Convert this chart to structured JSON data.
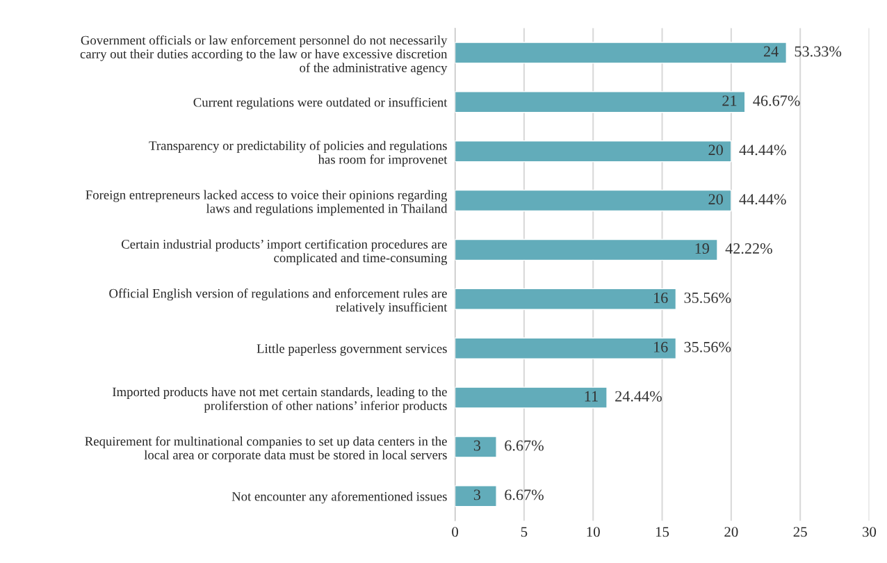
{
  "chart_data": {
    "type": "bar",
    "orientation": "horizontal",
    "categories": [
      "Government officials or law enforcement personnel do not necessarily\ncarry out their duties according to the law or have excessive discretion\nof the administrative agency",
      "Current regulations were outdated or insufficient",
      "Transparency or predictability of policies and regulations\nhas room for improvenet",
      "Foreign entrepreneurs lacked access to voice their opinions regarding\nlaws and regulations implemented in Thailand",
      "Certain industrial products’ import certification procedures are\ncomplicated and time-consuming",
      "Official English version of regulations and enforcement rules are\nrelatively insufficient",
      "Little paperless government services",
      "Imported products have not met certain standards, leading to the\nproliferstion of other nations’ inferior products",
      "Requirement for multinational companies to set up data centers in the\nlocal area or corporate data must be stored in local servers",
      "Not encounter any aforementioned issues"
    ],
    "values": [
      24,
      21,
      20,
      20,
      19,
      16,
      16,
      11,
      3,
      3
    ],
    "color": "#62acba",
    "data_labels": true,
    "annotations": [
      {
        "text": "53.33%",
        "x": 24,
        "y": "Government officials or law enforcement personnel do not necessarily\ncarry out their duties according to the law or have excessive discretion\nof the administrative agency"
      },
      {
        "text": "46.67%",
        "x": 21,
        "y": "Current regulations were outdated or insufficient"
      },
      {
        "text": "44.44%",
        "x": 20,
        "y": "Transparency or predictability of policies and regulations\nhas room for improvenet"
      },
      {
        "text": "44.44%",
        "x": 20,
        "y": "Foreign entrepreneurs lacked access to voice their opinions regarding\nlaws and regulations implemented in Thailand"
      },
      {
        "text": "42.22%",
        "x": 19,
        "y": "Certain industrial products’ import certification procedures are\ncomplicated and time-consuming"
      },
      {
        "text": "35.56%",
        "x": 16,
        "y": "Official English version of regulations and enforcement rules are\nrelatively insufficient"
      },
      {
        "text": "35.56%",
        "x": 16,
        "y": "Little paperless government services"
      },
      {
        "text": "24.44%",
        "x": 11,
        "y": "Imported products have not met certain standards, leading to the\nproliferstion of other nations’ inferior products"
      },
      {
        "text": "6.67%",
        "x": 3,
        "y": "Requirement for multinational companies to set up data centers in the\nlocal area or corporate data must be stored in local servers"
      },
      {
        "text": "6.67%",
        "x": 3,
        "y": "Not encounter any aforementioned issues"
      }
    ],
    "xlim": [
      0,
      30
    ],
    "xticks": [
      0,
      5,
      10,
      15,
      20,
      25,
      30
    ],
    "grid": "x",
    "legend": false
  }
}
